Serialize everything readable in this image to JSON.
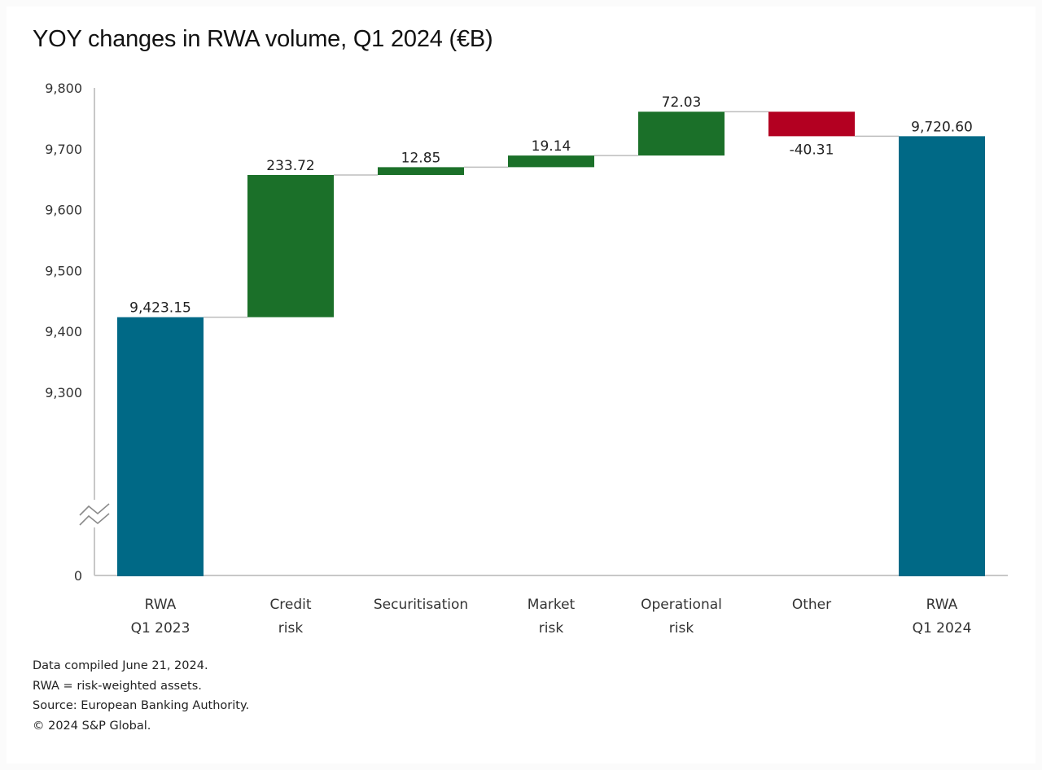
{
  "chart_data": {
    "type": "bar",
    "subtype": "waterfall",
    "title": "YOY changes in RWA volume, Q1 2024 (€B)",
    "xlabel": "",
    "ylabel": "",
    "ylim": [
      9200,
      9800
    ],
    "axis_break": true,
    "yticks": [
      {
        "value": 9800,
        "label": "9,800"
      },
      {
        "value": 9700,
        "label": "9,700"
      },
      {
        "value": 9600,
        "label": "9,600"
      },
      {
        "value": 9500,
        "label": "9,500"
      },
      {
        "value": 9400,
        "label": "9,400"
      },
      {
        "value": 9300,
        "label": "9,300"
      },
      {
        "value": 0,
        "label": "0"
      }
    ],
    "grid": false,
    "categories": [
      [
        "RWA",
        "Q1 2023"
      ],
      [
        "Credit",
        "risk"
      ],
      [
        "Securitisation"
      ],
      [
        "Market",
        "risk"
      ],
      [
        "Operational",
        "risk"
      ],
      [
        "Other"
      ],
      [
        "RWA",
        "Q1 2024"
      ]
    ],
    "bars": [
      {
        "kind": "total",
        "value": 9423.15,
        "label": "9,423.15"
      },
      {
        "kind": "increase",
        "value": 233.72,
        "label": "233.72"
      },
      {
        "kind": "increase",
        "value": 12.85,
        "label": "12.85"
      },
      {
        "kind": "increase",
        "value": 19.14,
        "label": "19.14"
      },
      {
        "kind": "increase",
        "value": 72.03,
        "label": "72.03"
      },
      {
        "kind": "decrease",
        "value": -40.31,
        "label": "-40.31"
      },
      {
        "kind": "total",
        "value": 9720.6,
        "label": "9,720.60"
      }
    ],
    "colors": {
      "total": "#006986",
      "increase": "#1b7029",
      "decrease": "#b30021",
      "connector": "#bdbdbd",
      "axis": "#c8c8c8"
    }
  },
  "notes": [
    "Data compiled June 21, 2024.",
    "RWA = risk-weighted assets.",
    "Source: European Banking Authority.",
    "© 2024 S&P Global."
  ]
}
